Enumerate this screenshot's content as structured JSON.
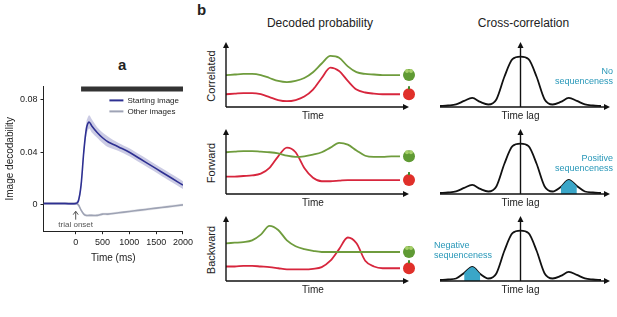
{
  "chart_data": [
    {
      "type": "line",
      "panel_label": "a",
      "x_label": "Time (ms)",
      "y_label": "Image decodability",
      "x": [
        -600,
        -400,
        -200,
        0,
        50,
        100,
        150,
        200,
        250,
        300,
        400,
        500,
        600,
        800,
        1000,
        1200,
        1400,
        1600,
        1800,
        2000
      ],
      "series": [
        {
          "name": "Starting image",
          "color": "#2e3192",
          "values": [
            0.001,
            0.001,
            0.001,
            0.001,
            0.003,
            0.015,
            0.04,
            0.058,
            0.063,
            0.06,
            0.055,
            0.051,
            0.048,
            0.044,
            0.04,
            0.035,
            0.03,
            0.025,
            0.02,
            0.015
          ],
          "errors": [
            0.001,
            0.001,
            0.001,
            0.001,
            0.002,
            0.003,
            0.004,
            0.005,
            0.005,
            0.005,
            0.004,
            0.004,
            0.004,
            0.003,
            0.003,
            0.003,
            0.003,
            0.003,
            0.003,
            0.003
          ]
        },
        {
          "name": "Other images",
          "color": "#9ea3b5",
          "values": [
            0.001,
            0.001,
            0.001,
            0.001,
            0,
            -0.004,
            -0.007,
            -0.008,
            -0.008,
            -0.008,
            -0.008,
            -0.007,
            -0.007,
            -0.006,
            -0.005,
            -0.004,
            -0.003,
            -0.002,
            -0.001,
            0
          ],
          "errors": [
            0.001,
            0.001,
            0.001,
            0.001,
            0.001,
            0.001,
            0.001,
            0.001,
            0.001,
            0.001,
            0.001,
            0.001,
            0.001,
            0.001,
            0.001,
            0.001,
            0.001,
            0.001,
            0.001,
            0.001
          ]
        }
      ],
      "xlim": [
        -600,
        2000
      ],
      "xticks": [
        0,
        500,
        1000,
        1500,
        2000
      ],
      "ylim": [
        -0.02,
        0.09
      ],
      "yticks": [
        0,
        0.04,
        0.08
      ],
      "legend": "upper right",
      "grid": false,
      "annotations": [
        {
          "text": "trial onset",
          "x": 0,
          "y": -0.012
        }
      ],
      "significance_bar": {
        "x": [
          100,
          2000
        ],
        "y": 0.088
      }
    },
    {
      "type": "line",
      "panel_label": "b",
      "column_title": "Decoded probability",
      "row_label": "Correlated",
      "x_label": "Time",
      "x": [
        0,
        0.5,
        1,
        1.5,
        2,
        2.5,
        3,
        3.5,
        4,
        4.5,
        5,
        5.5,
        6,
        6.5,
        7,
        7.5,
        8,
        8.5,
        9,
        9.5,
        10
      ],
      "series": [
        {
          "color": "#6f9c3d",
          "values": [
            0.55,
            0.56,
            0.57,
            0.57,
            0.55,
            0.5,
            0.45,
            0.43,
            0.45,
            0.5,
            0.6,
            0.75,
            0.88,
            0.85,
            0.7,
            0.6,
            0.57,
            0.56,
            0.55,
            0.55,
            0.55
          ]
        },
        {
          "color": "#d7263d",
          "values": [
            0.22,
            0.23,
            0.24,
            0.24,
            0.22,
            0.17,
            0.12,
            0.1,
            0.12,
            0.18,
            0.3,
            0.5,
            0.68,
            0.62,
            0.45,
            0.3,
            0.25,
            0.23,
            0.22,
            0.22,
            0.22
          ]
        }
      ],
      "xlim": [
        0,
        10
      ],
      "ylim": [
        0,
        1
      ],
      "tick_labels": false,
      "grid": false
    },
    {
      "type": "line",
      "column_title": "Cross-correlation",
      "x_label": "Time lag",
      "x": [
        -10,
        -9,
        -8,
        -7,
        -6,
        -5,
        -4,
        -3,
        -2,
        -1,
        0,
        1,
        2,
        3,
        4,
        5,
        6,
        7,
        8,
        9,
        10
      ],
      "series": [
        {
          "color": "#111111",
          "values": [
            0.02,
            0.03,
            0.05,
            0.12,
            0.18,
            0.1,
            0.05,
            0.15,
            0.6,
            0.95,
            1,
            0.95,
            0.6,
            0.15,
            0.05,
            0.1,
            0.18,
            0.12,
            0.05,
            0.03,
            0.02
          ]
        }
      ],
      "xlim": [
        -10,
        10
      ],
      "ylim": [
        0,
        1.15
      ],
      "tick_labels": false,
      "grid": false,
      "annotations": [
        {
          "text": "No sequenceness"
        }
      ]
    },
    {
      "type": "line",
      "row_label": "Forward",
      "x_label": "Time",
      "x": [
        0,
        0.5,
        1,
        1.5,
        2,
        2.5,
        3,
        3.5,
        4,
        4.5,
        5,
        5.5,
        6,
        6.5,
        7,
        7.5,
        8,
        8.5,
        9,
        9.5,
        10
      ],
      "series": [
        {
          "color": "#6f9c3d",
          "values": [
            0.72,
            0.73,
            0.74,
            0.74,
            0.73,
            0.72,
            0.7,
            0.66,
            0.64,
            0.65,
            0.68,
            0.72,
            0.8,
            0.88,
            0.85,
            0.75,
            0.66,
            0.64,
            0.64,
            0.65,
            0.65
          ]
        },
        {
          "color": "#d7263d",
          "values": [
            0.3,
            0.3,
            0.31,
            0.32,
            0.35,
            0.45,
            0.65,
            0.8,
            0.72,
            0.45,
            0.28,
            0.22,
            0.22,
            0.23,
            0.24,
            0.24,
            0.24,
            0.24,
            0.24,
            0.24,
            0.24
          ]
        }
      ],
      "xlim": [
        0,
        10
      ],
      "ylim": [
        0,
        1
      ],
      "tick_labels": false,
      "grid": false
    },
    {
      "type": "line",
      "x_label": "Time lag",
      "x": [
        -10,
        -9,
        -8,
        -7,
        -6,
        -5,
        -4,
        -3,
        -2,
        -1,
        0,
        1,
        2,
        3,
        4,
        5,
        6,
        7,
        8,
        9,
        10
      ],
      "series": [
        {
          "color": "#111111",
          "values": [
            0.02,
            0.03,
            0.05,
            0.12,
            0.18,
            0.1,
            0.05,
            0.15,
            0.6,
            0.95,
            1,
            0.95,
            0.6,
            0.15,
            0.05,
            0.14,
            0.28,
            0.16,
            0.05,
            0.03,
            0.02
          ]
        }
      ],
      "highlight": [
        5,
        7
      ],
      "highlight_color": "#3aa6c8",
      "xlim": [
        -10,
        10
      ],
      "ylim": [
        0,
        1.15
      ],
      "tick_labels": false,
      "grid": false,
      "annotations": [
        {
          "text": "Positive sequenceness"
        }
      ]
    },
    {
      "type": "line",
      "row_label": "Backward",
      "x_label": "Time",
      "x": [
        0,
        0.5,
        1,
        1.5,
        2,
        2.5,
        3,
        3.5,
        4,
        4.5,
        5,
        5.5,
        6,
        6.5,
        7,
        7.5,
        8,
        8.5,
        9,
        9.5,
        10
      ],
      "series": [
        {
          "color": "#6f9c3d",
          "values": [
            0.65,
            0.66,
            0.67,
            0.7,
            0.8,
            0.95,
            0.88,
            0.7,
            0.6,
            0.55,
            0.52,
            0.5,
            0.5,
            0.5,
            0.5,
            0.5,
            0.5,
            0.5,
            0.5,
            0.5,
            0.5
          ]
        },
        {
          "color": "#d7263d",
          "values": [
            0.25,
            0.25,
            0.26,
            0.26,
            0.25,
            0.24,
            0.22,
            0.2,
            0.2,
            0.2,
            0.21,
            0.24,
            0.35,
            0.55,
            0.75,
            0.65,
            0.35,
            0.25,
            0.22,
            0.22,
            0.22
          ]
        }
      ],
      "xlim": [
        0,
        10
      ],
      "ylim": [
        0,
        1
      ],
      "tick_labels": false,
      "grid": false
    },
    {
      "type": "line",
      "x_label": "Time lag",
      "x": [
        -10,
        -9,
        -8,
        -7,
        -6,
        -5,
        -4,
        -3,
        -2,
        -1,
        0,
        1,
        2,
        3,
        4,
        5,
        6,
        7,
        8,
        9,
        10
      ],
      "series": [
        {
          "color": "#111111",
          "values": [
            0.02,
            0.03,
            0.05,
            0.16,
            0.28,
            0.14,
            0.05,
            0.15,
            0.6,
            0.95,
            1,
            0.95,
            0.6,
            0.15,
            0.05,
            0.1,
            0.18,
            0.12,
            0.05,
            0.03,
            0.02
          ]
        }
      ],
      "highlight": [
        -7,
        -5
      ],
      "highlight_color": "#3aa6c8",
      "xlim": [
        -10,
        10
      ],
      "ylim": [
        0,
        1.15
      ],
      "tick_labels": false,
      "grid": false,
      "annotations": [
        {
          "text": "Negative sequenceness"
        }
      ]
    }
  ]
}
